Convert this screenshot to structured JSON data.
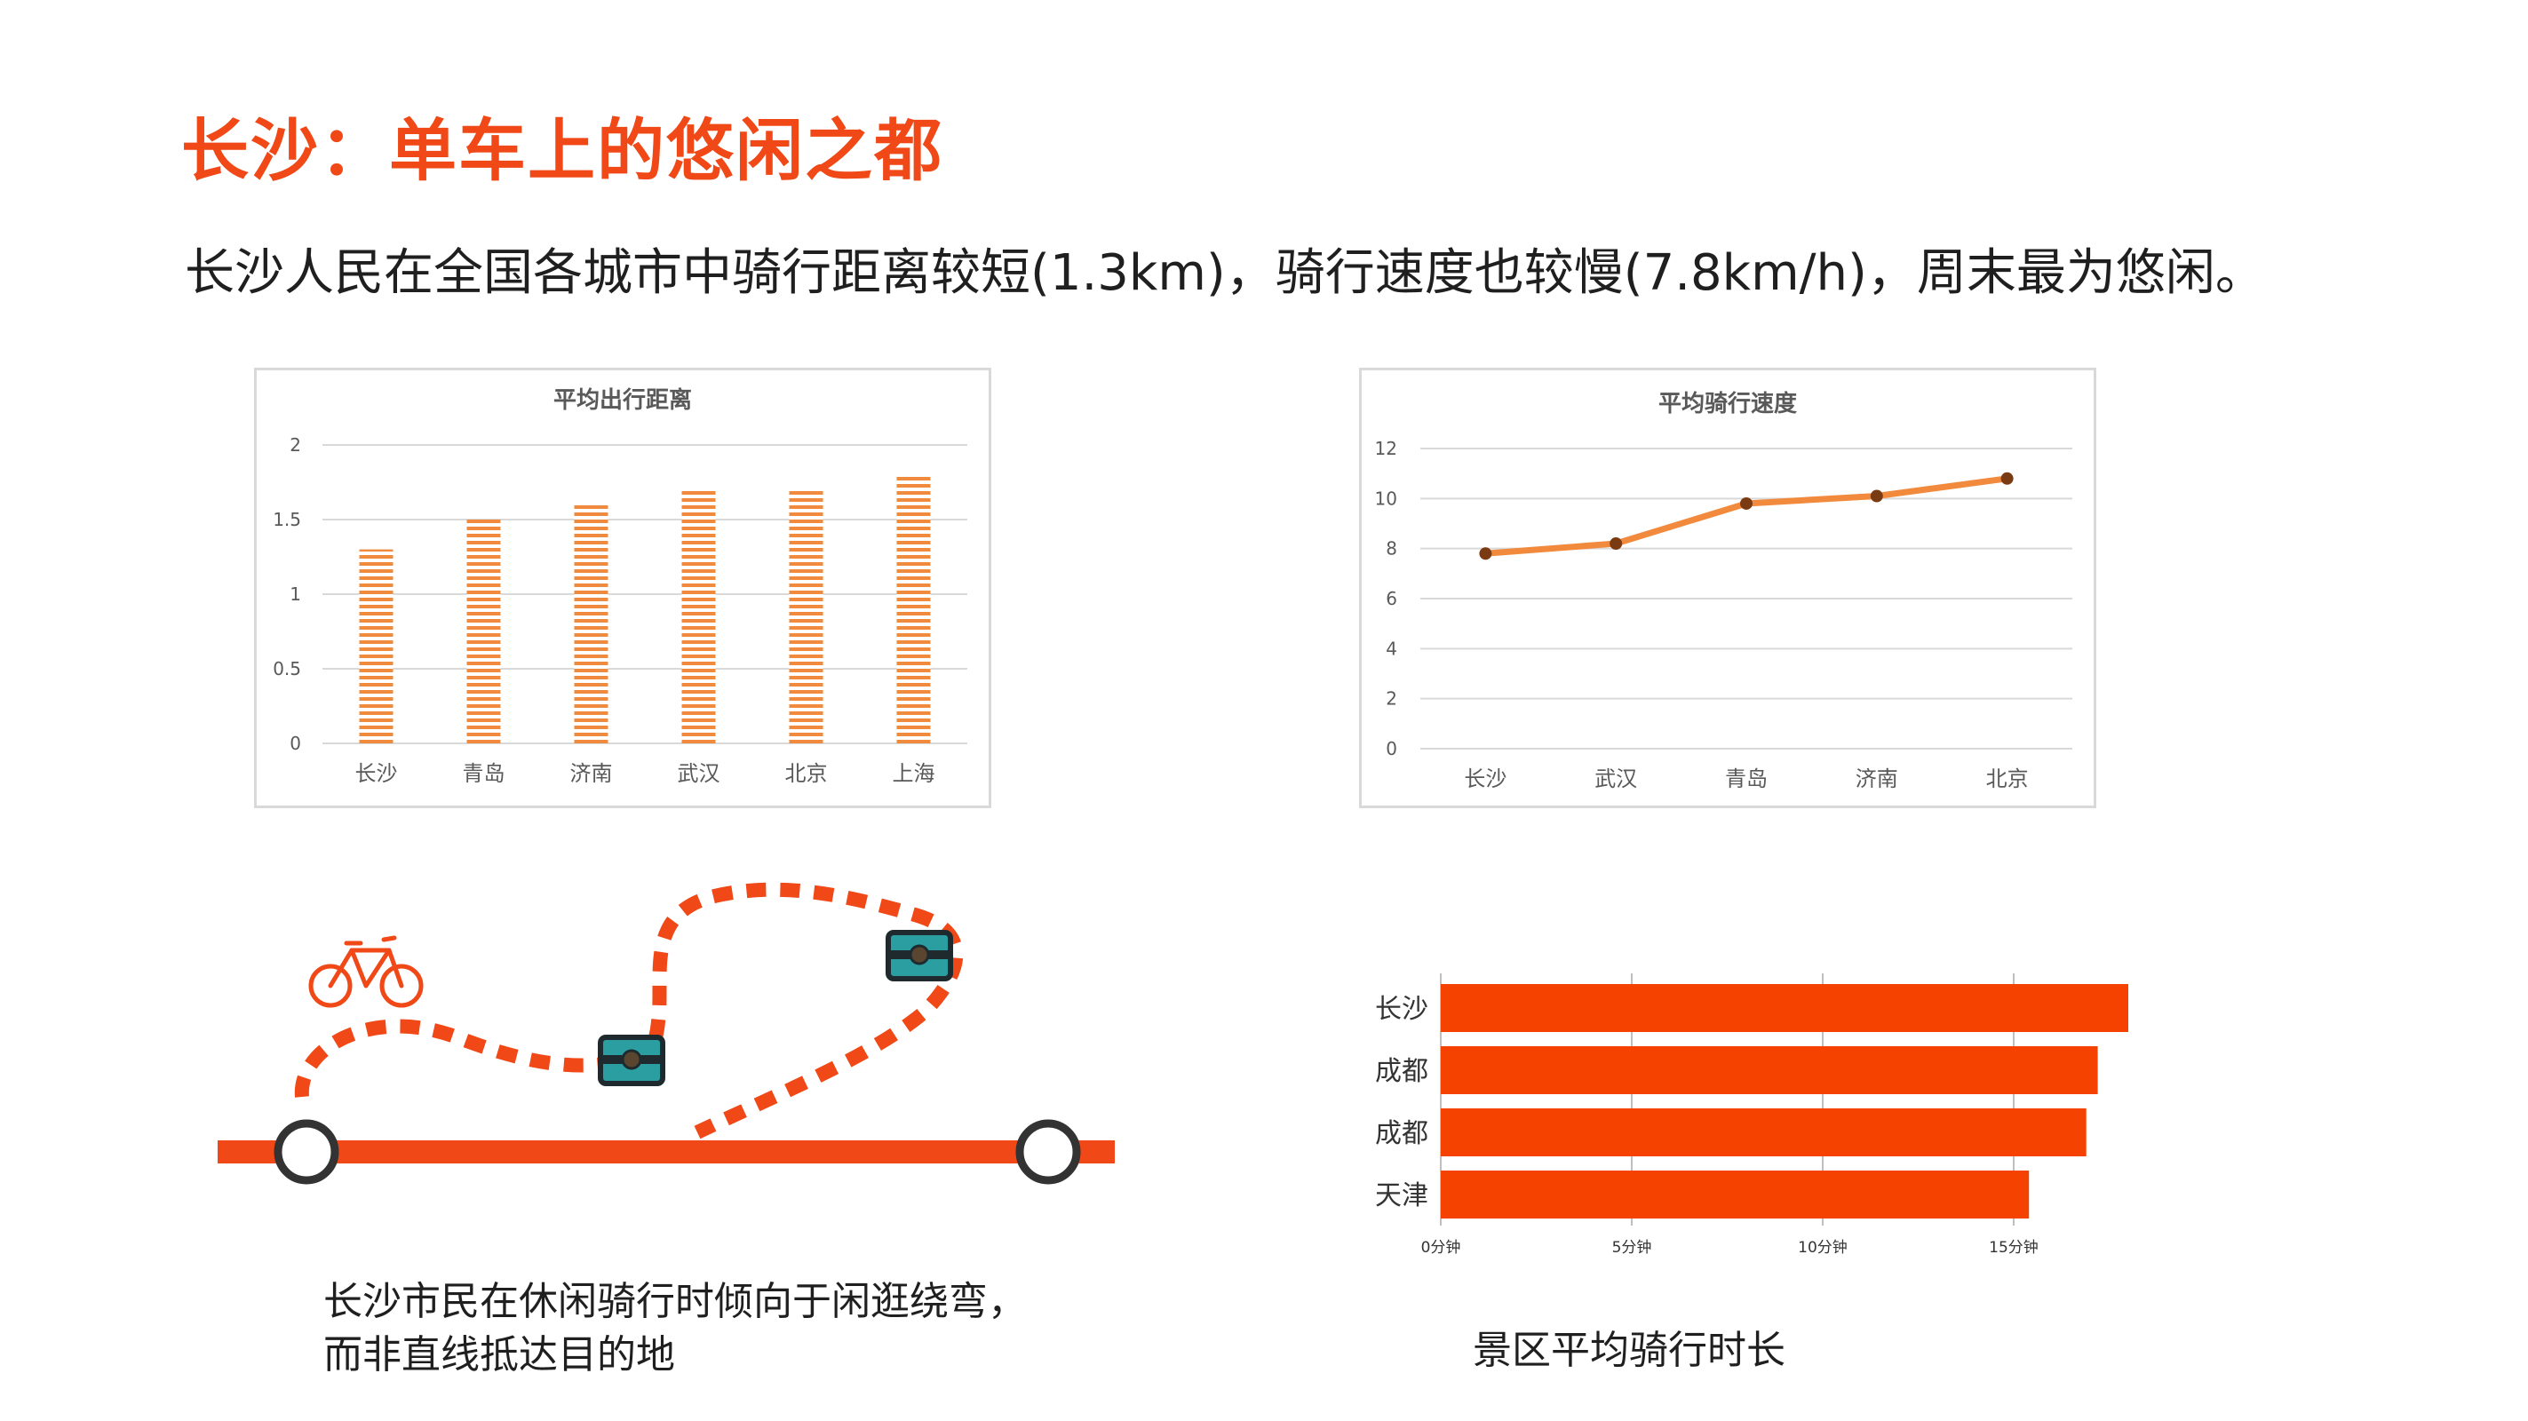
{
  "title": "长沙：单车上的悠闲之都",
  "subtitle": "长沙人民在全国各城市中骑行距离较短(1.3km)，骑行速度也较慢(7.8km/h)，周末最为悠闲。",
  "route_caption": {
    "line1": "长沙市民在休闲骑行时倾向于闲逛绕弯，",
    "line2": "而非直线抵达目的地"
  },
  "hbar_caption": "景区平均骑行时长",
  "colors": {
    "accent": "#f04816",
    "bar_orange": "#f08a3c",
    "line_orange": "#f28a3e",
    "marker": "#7a3b12",
    "hbar": "#f64200",
    "route_red": "#f04816",
    "chest": "#2a9ea0"
  },
  "icons": {
    "bike": "bicycle-icon",
    "chest": "treasure-chest-icon",
    "stop": "station-circle-icon"
  },
  "chart_data": [
    {
      "type": "bar",
      "title": "平均出行距离",
      "categories": [
        "长沙",
        "青岛",
        "济南",
        "武汉",
        "北京",
        "上海"
      ],
      "values": [
        1.3,
        1.5,
        1.6,
        1.7,
        1.7,
        1.8
      ],
      "ylim": [
        0,
        2
      ],
      "yticks": [
        "0",
        "0.5",
        "1",
        "1.5",
        "2"
      ],
      "grid": true
    },
    {
      "type": "line",
      "title": "平均骑行速度",
      "categories": [
        "长沙",
        "武汉",
        "青岛",
        "济南",
        "北京"
      ],
      "values": [
        7.8,
        8.2,
        9.8,
        10.1,
        10.8
      ],
      "ylim": [
        0,
        12
      ],
      "yticks": [
        "0",
        "2",
        "4",
        "6",
        "8",
        "10",
        "12"
      ],
      "grid": true
    },
    {
      "type": "bar",
      "orientation": "horizontal",
      "title": "景区平均骑行时长",
      "categories": [
        "长沙",
        "成都",
        "成都",
        "天津"
      ],
      "values": [
        18,
        17.2,
        16.9,
        15.4
      ],
      "xlim": [
        0,
        18
      ],
      "xticks": [
        "0分钟",
        "5分钟",
        "10分钟",
        "15分钟"
      ],
      "grid": true
    }
  ]
}
